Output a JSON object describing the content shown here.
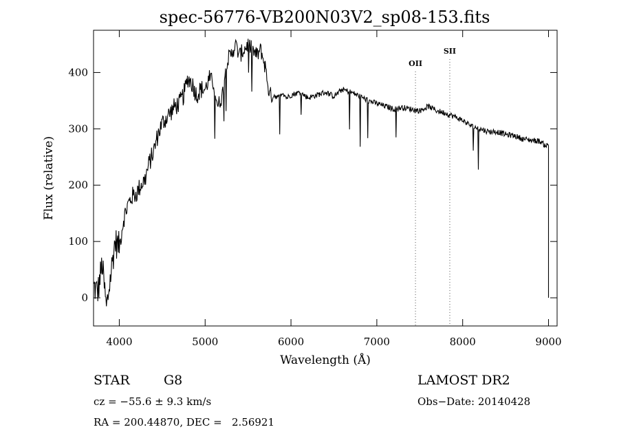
{
  "chart_data": {
    "type": "line",
    "title": "spec-56776-VB200N03V2_sp08-153.fits",
    "xlabel": "Wavelength (Å)",
    "ylabel": "Flux (relative)",
    "xlim": [
      3700,
      9100
    ],
    "ylim": [
      -50,
      475
    ],
    "x_ticks": [
      4000,
      5000,
      6000,
      7000,
      8000,
      9000
    ],
    "y_ticks": [
      0,
      100,
      200,
      300,
      400
    ],
    "grid": false,
    "series": [
      {
        "x": [
          3700,
          3750,
          3800,
          3850,
          3900,
          3950,
          4000,
          4050,
          4100,
          4150,
          4200,
          4250,
          4300,
          4350,
          4400,
          4450,
          4500,
          4550,
          4600,
          4650,
          4700,
          4750,
          4800,
          4850,
          4900,
          4950,
          5000,
          5050,
          5100,
          5150,
          5200,
          5250,
          5300,
          5350,
          5400,
          5450,
          5500,
          5550,
          5600,
          5650,
          5700,
          5750,
          5800,
          5850,
          5900,
          5950,
          6000,
          6100,
          6200,
          6300,
          6400,
          6500,
          6600,
          6700,
          6800,
          6900,
          7000,
          7100,
          7200,
          7300,
          7400,
          7500,
          7600,
          7700,
          7800,
          7900,
          8000,
          8100,
          8200,
          8300,
          8400,
          8500,
          8600,
          8700,
          8800,
          8900,
          8950,
          9000
        ],
        "y": [
          20,
          10,
          60,
          -20,
          40,
          100,
          90,
          140,
          165,
          180,
          185,
          200,
          210,
          240,
          260,
          290,
          310,
          320,
          330,
          340,
          345,
          360,
          390,
          380,
          360,
          370,
          370,
          390,
          380,
          340,
          360,
          420,
          430,
          450,
          430,
          440,
          450,
          440,
          430,
          440,
          410,
          360,
          360,
          355,
          365,
          355,
          360,
          365,
          355,
          360,
          365,
          358,
          370,
          365,
          358,
          350,
          345,
          340,
          335,
          338,
          335,
          332,
          340,
          332,
          328,
          322,
          315,
          305,
          300,
          295,
          295,
          290,
          288,
          282,
          280,
          278,
          272,
          270
        ]
      }
    ],
    "emission_lines": [
      {
        "label": "OII",
        "x": 7450
      },
      {
        "label": "SII",
        "x": 7850
      }
    ]
  },
  "footer": {
    "object_type": "STAR",
    "subclass": "G8",
    "survey": "LAMOST DR2",
    "redshift_line": "cz = −55.6 ± 9.3 km/s",
    "obs_date_line": "Obs−Date: 20140428",
    "coords_line": "RA = 200.44870, DEC =   2.56921"
  }
}
